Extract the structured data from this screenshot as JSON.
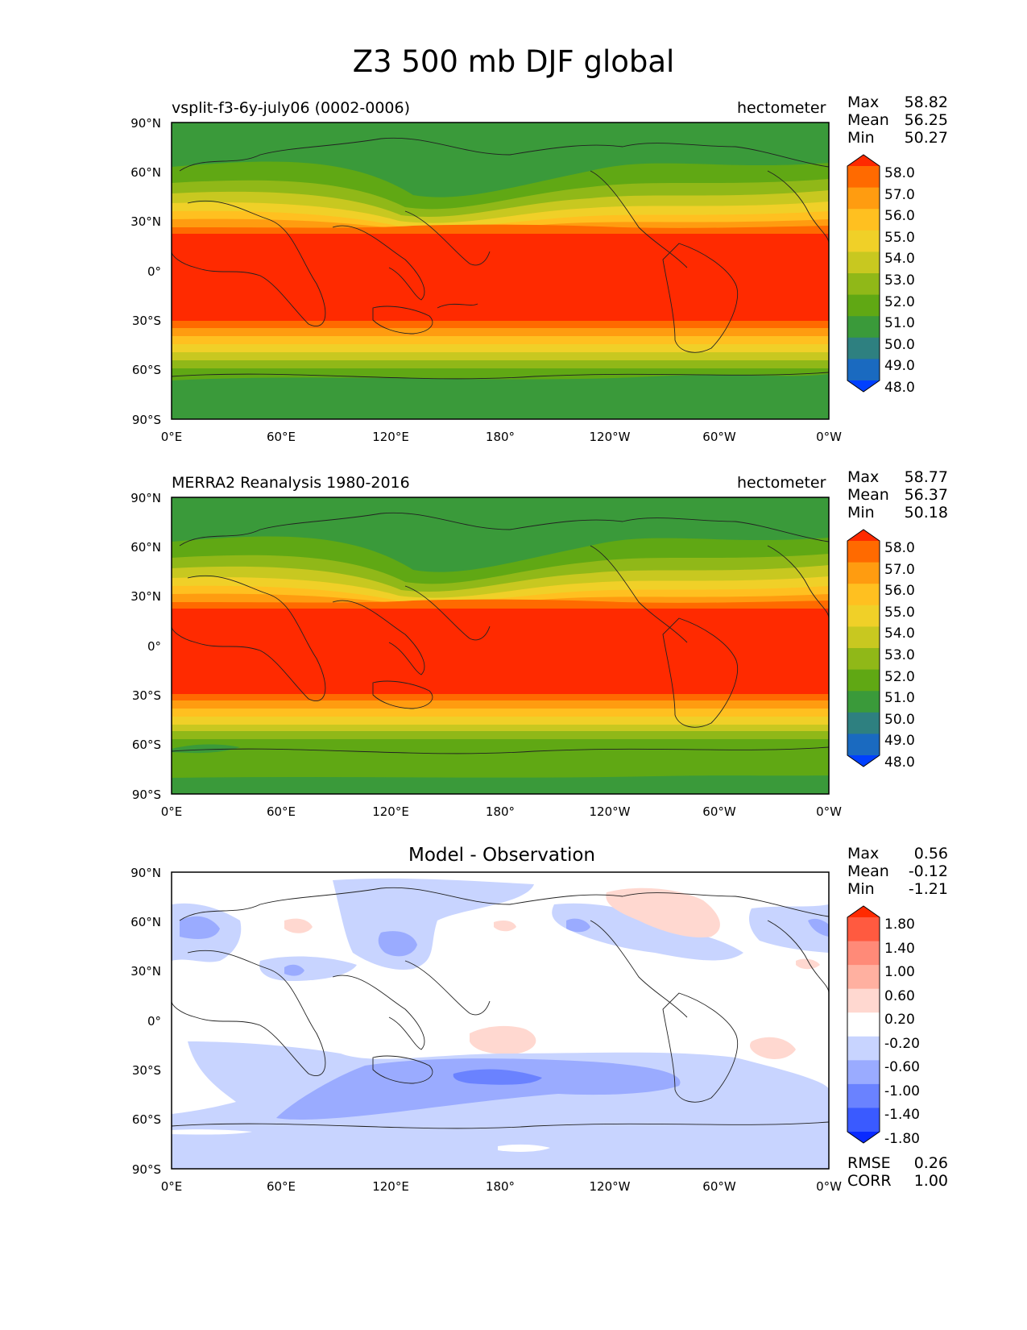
{
  "title": "Z3 500 mb DJF global",
  "lat_ticks": [
    "90°N",
    "60°N",
    "30°N",
    "0°",
    "30°S",
    "60°S",
    "90°S"
  ],
  "lon_ticks": [
    "0°E",
    "60°E",
    "120°E",
    "180°",
    "120°W",
    "60°W",
    "0°W"
  ],
  "panels": [
    {
      "left_label": "vsplit-f3-6y-july06 (0002-0006)",
      "right_label": "hectometer",
      "center_title": "",
      "stats": [
        {
          "label": "Max",
          "value": "58.82"
        },
        {
          "label": "Mean",
          "value": "56.25"
        },
        {
          "label": "Min",
          "value": "50.27"
        }
      ],
      "colorbar": [
        "58.0",
        "57.0",
        "56.0",
        "55.0",
        "54.0",
        "53.0",
        "52.0",
        "51.0",
        "50.0",
        "49.0",
        "48.0"
      ],
      "colors": [
        "#ff2a00",
        "#ff6a00",
        "#ff9c10",
        "#ffc020",
        "#f0d028",
        "#c8c820",
        "#90b818",
        "#60a814",
        "#3a9a3a",
        "#2e8080",
        "#1a6ac0",
        "#0040ff"
      ]
    },
    {
      "left_label": "MERRA2 Reanalysis 1980-2016",
      "right_label": "hectometer",
      "center_title": "",
      "stats": [
        {
          "label": "Max",
          "value": "58.77"
        },
        {
          "label": "Mean",
          "value": "56.37"
        },
        {
          "label": "Min",
          "value": "50.18"
        }
      ],
      "colorbar": [
        "58.0",
        "57.0",
        "56.0",
        "55.0",
        "54.0",
        "53.0",
        "52.0",
        "51.0",
        "50.0",
        "49.0",
        "48.0"
      ],
      "colors": [
        "#ff2a00",
        "#ff6a00",
        "#ff9c10",
        "#ffc020",
        "#f0d028",
        "#c8c820",
        "#90b818",
        "#60a814",
        "#3a9a3a",
        "#2e8080",
        "#1a6ac0",
        "#0040ff"
      ]
    },
    {
      "left_label": "",
      "right_label": "",
      "center_title": "Model - Observation",
      "stats": [
        {
          "label": "Max",
          "value": "0.56"
        },
        {
          "label": "Mean",
          "value": "-0.12"
        },
        {
          "label": "Min",
          "value": "-1.21"
        }
      ],
      "colorbar": [
        "1.80",
        "1.40",
        "1.00",
        "0.60",
        "0.20",
        "-0.20",
        "-0.60",
        "-1.00",
        "-1.40",
        "-1.80"
      ],
      "colors": [
        "#ff2a00",
        "#ff5a40",
        "#ff8a78",
        "#ffb0a0",
        "#ffd8d0",
        "#ffffff",
        "#c8d4ff",
        "#9aabff",
        "#6a82ff",
        "#3a5aff",
        "#0a2aff"
      ],
      "metrics": [
        {
          "label": "RMSE",
          "value": "0.26"
        },
        {
          "label": "CORR",
          "value": "1.00"
        }
      ]
    }
  ]
}
